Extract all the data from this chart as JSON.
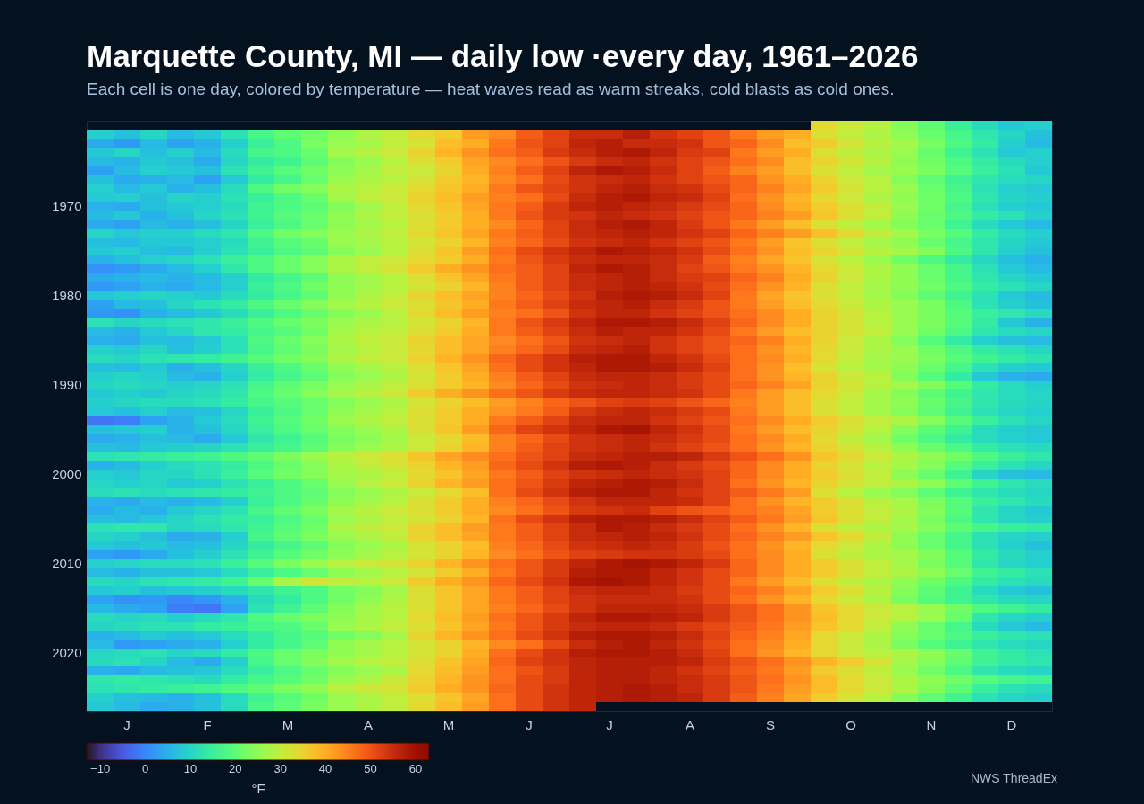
{
  "chart_data": {
    "type": "heatmap",
    "title": "Marquette County, MI — daily low ·every day, 1961–2026",
    "subtitle": "Each cell is one day, colored by temperature — heat waves read as warm streaks, cold blasts as cold ones.",
    "clabel": "°F",
    "annotations": [
      "NWS ThreadEx"
    ],
    "categories": [
      null,
      "J",
      null,
      null,
      "F",
      null,
      null,
      "M",
      null,
      null,
      "A",
      null,
      null,
      "M",
      null,
      null,
      "J",
      null,
      null,
      "J",
      null,
      null,
      "A",
      null,
      null,
      "S",
      null,
      null,
      "O",
      null,
      null,
      "N",
      null,
      null,
      "D",
      null
    ],
    "y_categories": [
      null,
      null,
      null,
      null,
      null,
      null,
      null,
      null,
      null,
      "1970",
      null,
      null,
      null,
      null,
      null,
      null,
      null,
      null,
      null,
      "1980",
      null,
      null,
      null,
      null,
      null,
      null,
      null,
      null,
      null,
      "1990",
      null,
      null,
      null,
      null,
      null,
      null,
      null,
      null,
      null,
      "2000",
      null,
      null,
      null,
      null,
      null,
      null,
      null,
      null,
      null,
      "2010",
      null,
      null,
      null,
      null,
      null,
      null,
      null,
      null,
      null,
      "2020",
      null,
      null,
      null,
      null,
      null,
      null
    ],
    "clim": [
      -13,
      63
    ],
    "cticks": [
      {
        "value": -10,
        "label": "−10"
      },
      0,
      10,
      20,
      30,
      40,
      50,
      60
    ],
    "cells": [
      [
        null,
        null,
        null,
        null,
        null,
        null,
        null,
        null,
        null,
        null,
        null,
        null,
        null,
        null,
        null,
        null,
        null,
        null,
        null,
        null,
        null,
        null,
        null,
        null,
        null,
        null,
        null,
        34,
        31,
        29,
        24,
        20,
        15,
        11,
        8,
        9
      ],
      [
        9,
        7,
        10,
        6,
        8,
        12,
        17,
        20,
        22,
        25,
        28,
        30,
        34,
        36,
        42,
        44,
        49,
        52,
        55,
        55,
        57,
        54,
        52,
        50,
        46,
        42,
        40,
        33,
        30,
        28,
        25,
        21,
        17,
        13,
        10,
        7
      ],
      [
        4,
        2,
        6,
        3,
        5,
        9,
        15,
        18,
        23,
        26,
        27,
        30,
        32,
        38,
        40,
        46,
        50,
        52,
        56,
        57,
        55,
        55,
        54,
        50,
        48,
        44,
        38,
        36,
        32,
        29,
        27,
        23,
        18,
        14,
        9,
        6
      ],
      [
        8,
        10,
        7,
        9,
        6,
        11,
        17,
        18,
        21,
        27,
        29,
        31,
        35,
        39,
        43,
        47,
        49,
        53,
        55,
        57,
        58,
        56,
        53,
        52,
        46,
        42,
        40,
        33,
        30,
        28,
        26,
        21,
        16,
        12,
        8,
        9
      ],
      [
        6,
        5,
        8,
        7,
        4,
        10,
        14,
        16,
        20,
        24,
        26,
        29,
        33,
        36,
        41,
        44,
        47,
        50,
        53,
        55,
        56,
        54,
        52,
        50,
        47,
        44,
        38,
        35,
        32,
        29,
        25,
        22,
        18,
        14,
        11,
        9
      ],
      [
        3,
        6,
        9,
        8,
        7,
        12,
        16,
        19,
        22,
        25,
        27,
        30,
        31,
        35,
        40,
        45,
        49,
        52,
        56,
        58,
        57,
        55,
        52,
        49,
        45,
        42,
        38,
        33,
        30,
        27,
        26,
        23,
        19,
        15,
        12,
        8
      ],
      [
        7,
        4,
        5,
        6,
        3,
        8,
        14,
        17,
        21,
        26,
        28,
        29,
        32,
        36,
        39,
        44,
        47,
        51,
        54,
        55,
        56,
        54,
        52,
        50,
        48,
        43,
        40,
        35,
        31,
        29,
        24,
        20,
        16,
        13,
        11,
        10
      ],
      [
        9,
        6,
        8,
        5,
        7,
        11,
        18,
        22,
        24,
        28,
        29,
        31,
        34,
        37,
        40,
        46,
        50,
        52,
        54,
        56,
        57,
        55,
        54,
        51,
        48,
        45,
        41,
        36,
        32,
        29,
        26,
        21,
        17,
        12,
        9,
        8
      ],
      [
        8,
        9,
        7,
        10,
        9,
        12,
        15,
        18,
        21,
        27,
        30,
        31,
        35,
        38,
        42,
        45,
        47,
        51,
        55,
        57,
        58,
        56,
        55,
        52,
        47,
        43,
        39,
        34,
        31,
        28,
        25,
        22,
        18,
        13,
        10,
        9
      ],
      [
        5,
        4,
        7,
        8,
        9,
        11,
        16,
        18,
        20,
        24,
        27,
        30,
        34,
        37,
        41,
        46,
        49,
        53,
        56,
        57,
        56,
        55,
        53,
        51,
        48,
        44,
        40,
        36,
        33,
        30,
        26,
        22,
        17,
        12,
        9,
        8
      ],
      [
        6,
        8,
        5,
        7,
        10,
        12,
        16,
        19,
        21,
        25,
        28,
        30,
        33,
        36,
        40,
        46,
        50,
        53,
        54,
        56,
        55,
        54,
        52,
        50,
        48,
        45,
        42,
        37,
        33,
        30,
        25,
        21,
        18,
        14,
        12,
        9
      ],
      [
        4,
        3,
        6,
        5,
        7,
        10,
        15,
        18,
        21,
        25,
        27,
        29,
        33,
        36,
        40,
        44,
        48,
        52,
        55,
        57,
        58,
        56,
        53,
        50,
        46,
        42,
        38,
        33,
        30,
        27,
        24,
        21,
        16,
        11,
        8,
        6
      ],
      [
        10,
        8,
        9,
        9,
        11,
        13,
        18,
        22,
        24,
        26,
        28,
        30,
        34,
        37,
        41,
        46,
        49,
        52,
        55,
        56,
        57,
        56,
        54,
        52,
        48,
        45,
        42,
        38,
        34,
        30,
        27,
        23,
        19,
        14,
        11,
        9
      ],
      [
        7,
        6,
        8,
        8,
        9,
        11,
        16,
        19,
        21,
        26,
        27,
        29,
        32,
        35,
        39,
        45,
        48,
        51,
        54,
        55,
        56,
        54,
        52,
        50,
        46,
        42,
        37,
        33,
        30,
        27,
        25,
        21,
        17,
        13,
        10,
        8
      ],
      [
        8,
        9,
        7,
        6,
        9,
        12,
        15,
        18,
        20,
        24,
        26,
        29,
        33,
        37,
        42,
        47,
        51,
        54,
        56,
        58,
        57,
        56,
        54,
        51,
        47,
        43,
        38,
        35,
        32,
        29,
        27,
        24,
        18,
        13,
        9,
        7
      ],
      [
        5,
        7,
        9,
        10,
        12,
        15,
        18,
        21,
        24,
        28,
        30,
        31,
        34,
        36,
        40,
        46,
        50,
        53,
        55,
        56,
        56,
        55,
        53,
        49,
        45,
        41,
        37,
        32,
        29,
        26,
        22,
        18,
        14,
        10,
        7,
        5
      ],
      [
        1,
        2,
        4,
        6,
        9,
        13,
        18,
        21,
        24,
        28,
        30,
        32,
        36,
        40,
        43,
        47,
        49,
        52,
        56,
        58,
        57,
        55,
        52,
        50,
        46,
        43,
        39,
        34,
        31,
        28,
        25,
        21,
        17,
        12,
        8,
        6
      ],
      [
        4,
        5,
        6,
        5,
        6,
        9,
        14,
        17,
        20,
        25,
        27,
        29,
        33,
        37,
        41,
        46,
        49,
        52,
        55,
        56,
        57,
        55,
        53,
        52,
        48,
        45,
        40,
        35,
        31,
        28,
        25,
        21,
        17,
        13,
        10,
        8
      ],
      [
        2,
        3,
        5,
        4,
        6,
        9,
        15,
        18,
        22,
        25,
        27,
        29,
        32,
        35,
        39,
        45,
        49,
        52,
        55,
        56,
        57,
        56,
        54,
        51,
        47,
        43,
        39,
        33,
        30,
        27,
        25,
        22,
        18,
        14,
        12,
        10
      ],
      [
        8,
        9,
        10,
        9,
        8,
        11,
        14,
        17,
        20,
        25,
        28,
        30,
        35,
        38,
        41,
        45,
        48,
        51,
        54,
        57,
        58,
        57,
        55,
        52,
        46,
        41,
        37,
        33,
        30,
        27,
        24,
        20,
        16,
        12,
        8,
        6
      ],
      [
        3,
        6,
        7,
        10,
        12,
        14,
        18,
        21,
        24,
        27,
        29,
        31,
        33,
        37,
        40,
        46,
        49,
        52,
        55,
        56,
        57,
        55,
        53,
        50,
        46,
        42,
        38,
        34,
        31,
        28,
        26,
        23,
        18,
        12,
        9,
        7
      ],
      [
        2,
        1,
        5,
        6,
        8,
        11,
        15,
        18,
        21,
        24,
        26,
        29,
        34,
        38,
        42,
        45,
        47,
        50,
        54,
        56,
        56,
        54,
        52,
        50,
        47,
        44,
        40,
        35,
        32,
        29,
        26,
        23,
        19,
        15,
        13,
        11
      ],
      [
        12,
        10,
        11,
        12,
        13,
        15,
        18,
        21,
        23,
        26,
        28,
        29,
        32,
        35,
        39,
        46,
        50,
        53,
        56,
        58,
        58,
        57,
        55,
        52,
        48,
        44,
        40,
        35,
        32,
        29,
        26,
        23,
        19,
        14,
        8,
        5
      ],
      [
        6,
        5,
        8,
        10,
        13,
        14,
        17,
        19,
        22,
        27,
        29,
        30,
        33,
        36,
        40,
        46,
        49,
        52,
        55,
        57,
        56,
        56,
        54,
        51,
        46,
        42,
        38,
        35,
        32,
        30,
        26,
        22,
        18,
        13,
        11,
        10
      ],
      [
        5,
        4,
        7,
        6,
        8,
        12,
        18,
        21,
        24,
        28,
        30,
        31,
        35,
        38,
        41,
        44,
        47,
        50,
        54,
        55,
        56,
        54,
        52,
        50,
        48,
        45,
        40,
        35,
        31,
        28,
        24,
        19,
        14,
        9,
        7,
        6
      ],
      [
        9,
        8,
        10,
        7,
        9,
        12,
        17,
        20,
        23,
        27,
        29,
        31,
        34,
        38,
        41,
        45,
        48,
        51,
        55,
        56,
        57,
        54,
        52,
        50,
        47,
        43,
        39,
        34,
        31,
        28,
        26,
        22,
        18,
        14,
        12,
        10
      ],
      [
        11,
        10,
        12,
        13,
        14,
        16,
        19,
        22,
        24,
        28,
        30,
        31,
        35,
        39,
        43,
        48,
        51,
        54,
        57,
        58,
        58,
        56,
        54,
        51,
        47,
        44,
        40,
        34,
        30,
        27,
        26,
        23,
        19,
        16,
        14,
        12
      ],
      [
        7,
        6,
        8,
        5,
        7,
        10,
        15,
        18,
        21,
        25,
        27,
        29,
        33,
        37,
        41,
        47,
        51,
        54,
        56,
        58,
        58,
        57,
        55,
        52,
        47,
        43,
        38,
        32,
        29,
        27,
        25,
        21,
        17,
        12,
        9,
        8
      ],
      [
        9,
        10,
        9,
        6,
        5,
        9,
        14,
        17,
        20,
        24,
        26,
        28,
        32,
        36,
        40,
        45,
        49,
        52,
        55,
        56,
        56,
        55,
        53,
        51,
        47,
        43,
        39,
        35,
        31,
        29,
        24,
        19,
        14,
        8,
        5,
        4
      ],
      [
        10,
        11,
        10,
        9,
        10,
        12,
        17,
        20,
        23,
        26,
        28,
        30,
        33,
        36,
        39,
        44,
        48,
        51,
        54,
        55,
        56,
        55,
        53,
        51,
        48,
        45,
        41,
        35,
        32,
        29,
        27,
        24,
        19,
        14,
        11,
        9
      ],
      [
        8,
        9,
        8,
        10,
        11,
        13,
        18,
        21,
        24,
        27,
        29,
        31,
        36,
        40,
        43,
        47,
        50,
        53,
        55,
        56,
        56,
        55,
        54,
        51,
        46,
        42,
        38,
        34,
        31,
        27,
        24,
        20,
        16,
        13,
        11,
        10
      ],
      [
        9,
        10,
        11,
        11,
        12,
        14,
        17,
        19,
        21,
        24,
        26,
        28,
        32,
        35,
        38,
        42,
        45,
        48,
        50,
        52,
        53,
        52,
        50,
        48,
        45,
        42,
        38,
        33,
        30,
        27,
        25,
        21,
        17,
        13,
        11,
        10
      ],
      [
        8,
        7,
        9,
        6,
        7,
        10,
        15,
        18,
        21,
        25,
        27,
        29,
        33,
        36,
        40,
        43,
        46,
        49,
        53,
        55,
        56,
        55,
        53,
        51,
        46,
        42,
        38,
        33,
        30,
        27,
        24,
        20,
        16,
        12,
        10,
        9
      ],
      [
        -2,
        -1,
        3,
        5,
        8,
        11,
        16,
        19,
        22,
        26,
        28,
        30,
        33,
        36,
        40,
        46,
        49,
        52,
        55,
        56,
        56,
        54,
        52,
        50,
        47,
        44,
        40,
        36,
        33,
        30,
        28,
        24,
        19,
        15,
        12,
        10
      ],
      [
        7,
        8,
        9,
        5,
        7,
        10,
        15,
        18,
        21,
        24,
        26,
        28,
        33,
        37,
        42,
        48,
        52,
        54,
        56,
        58,
        59,
        56,
        54,
        51,
        46,
        42,
        38,
        35,
        32,
        29,
        24,
        20,
        16,
        11,
        9,
        8
      ],
      [
        4,
        5,
        7,
        6,
        4,
        8,
        13,
        16,
        19,
        23,
        25,
        27,
        31,
        34,
        38,
        45,
        48,
        51,
        54,
        55,
        56,
        55,
        53,
        51,
        47,
        44,
        40,
        34,
        30,
        27,
        22,
        18,
        14,
        11,
        9,
        8
      ],
      [
        7,
        6,
        8,
        9,
        10,
        12,
        15,
        17,
        20,
        24,
        26,
        28,
        31,
        35,
        39,
        45,
        49,
        52,
        54,
        55,
        56,
        54,
        52,
        50,
        47,
        43,
        39,
        35,
        32,
        29,
        25,
        21,
        18,
        14,
        12,
        11
      ],
      [
        12,
        13,
        14,
        15,
        16,
        18,
        20,
        23,
        26,
        29,
        31,
        33,
        37,
        41,
        44,
        47,
        50,
        52,
        55,
        56,
        57,
        57,
        56,
        53,
        50,
        47,
        43,
        37,
        34,
        31,
        28,
        25,
        22,
        18,
        15,
        13
      ],
      [
        5,
        6,
        9,
        11,
        12,
        14,
        18,
        21,
        24,
        28,
        30,
        32,
        35,
        39,
        42,
        48,
        51,
        54,
        57,
        58,
        57,
        55,
        53,
        51,
        48,
        44,
        40,
        35,
        32,
        29,
        27,
        24,
        19,
        15,
        12,
        10
      ],
      [
        9,
        8,
        10,
        10,
        12,
        15,
        19,
        22,
        24,
        27,
        28,
        30,
        34,
        37,
        41,
        46,
        49,
        52,
        54,
        55,
        56,
        55,
        54,
        52,
        48,
        44,
        40,
        36,
        33,
        30,
        25,
        21,
        16,
        10,
        7,
        6
      ],
      [
        10,
        9,
        10,
        8,
        9,
        12,
        15,
        18,
        21,
        26,
        29,
        31,
        35,
        39,
        42,
        47,
        50,
        53,
        56,
        57,
        58,
        57,
        55,
        52,
        47,
        43,
        39,
        35,
        32,
        30,
        28,
        25,
        20,
        16,
        13,
        11
      ],
      [
        11,
        12,
        11,
        12,
        13,
        14,
        16,
        18,
        20,
        24,
        26,
        28,
        31,
        34,
        38,
        47,
        51,
        54,
        57,
        58,
        58,
        56,
        54,
        52,
        49,
        46,
        42,
        33,
        29,
        26,
        24,
        20,
        16,
        13,
        11,
        10
      ],
      [
        5,
        4,
        6,
        5,
        6,
        9,
        15,
        18,
        21,
        25,
        27,
        29,
        33,
        36,
        40,
        45,
        48,
        51,
        54,
        56,
        56,
        56,
        55,
        52,
        47,
        43,
        39,
        36,
        33,
        29,
        27,
        23,
        19,
        15,
        13,
        11
      ],
      [
        4,
        6,
        5,
        8,
        10,
        12,
        17,
        20,
        23,
        27,
        29,
        31,
        33,
        36,
        40,
        44,
        47,
        50,
        53,
        54,
        55,
        52,
        50,
        49,
        47,
        45,
        41,
        36,
        33,
        30,
        28,
        24,
        19,
        13,
        10,
        8
      ],
      [
        7,
        6,
        8,
        10,
        12,
        14,
        15,
        18,
        21,
        26,
        28,
        30,
        32,
        35,
        39,
        47,
        51,
        54,
        57,
        58,
        58,
        57,
        55,
        52,
        49,
        46,
        42,
        37,
        33,
        30,
        27,
        23,
        18,
        13,
        10,
        9
      ],
      [
        12,
        13,
        13,
        10,
        11,
        13,
        16,
        19,
        22,
        28,
        30,
        31,
        35,
        38,
        42,
        46,
        49,
        52,
        55,
        58,
        57,
        55,
        53,
        51,
        47,
        43,
        39,
        33,
        30,
        28,
        27,
        24,
        20,
        17,
        15,
        14
      ],
      [
        10,
        9,
        7,
        4,
        5,
        9,
        17,
        20,
        23,
        26,
        28,
        30,
        35,
        38,
        41,
        46,
        49,
        52,
        55,
        56,
        57,
        56,
        54,
        51,
        48,
        45,
        42,
        37,
        34,
        30,
        25,
        21,
        17,
        12,
        10,
        9
      ],
      [
        8,
        7,
        8,
        6,
        7,
        10,
        14,
        17,
        20,
        24,
        26,
        28,
        32,
        35,
        38,
        45,
        48,
        51,
        54,
        55,
        56,
        55,
        53,
        50,
        47,
        43,
        39,
        34,
        31,
        28,
        25,
        21,
        17,
        12,
        9,
        7
      ],
      [
        3,
        2,
        4,
        7,
        9,
        12,
        16,
        19,
        22,
        25,
        27,
        29,
        32,
        35,
        39,
        44,
        47,
        50,
        52,
        53,
        54,
        54,
        53,
        51,
        47,
        44,
        40,
        33,
        30,
        28,
        27,
        24,
        19,
        14,
        11,
        9
      ],
      [
        9,
        10,
        11,
        11,
        12,
        15,
        19,
        23,
        26,
        29,
        31,
        32,
        35,
        39,
        43,
        47,
        50,
        53,
        56,
        58,
        59,
        58,
        56,
        53,
        48,
        44,
        40,
        36,
        33,
        30,
        27,
        23,
        19,
        13,
        10,
        9
      ],
      [
        6,
        5,
        7,
        7,
        8,
        11,
        15,
        18,
        21,
        25,
        27,
        29,
        32,
        36,
        40,
        46,
        50,
        53,
        57,
        58,
        58,
        56,
        54,
        51,
        48,
        44,
        40,
        36,
        33,
        30,
        28,
        25,
        21,
        16,
        14,
        12
      ],
      [
        11,
        10,
        12,
        13,
        14,
        16,
        21,
        28,
        32,
        30,
        29,
        31,
        36,
        40,
        43,
        48,
        51,
        54,
        58,
        59,
        58,
        56,
        54,
        51,
        46,
        42,
        38,
        33,
        30,
        28,
        25,
        22,
        18,
        14,
        12,
        11
      ],
      [
        8,
        9,
        7,
        8,
        9,
        11,
        13,
        16,
        18,
        22,
        24,
        27,
        33,
        37,
        41,
        46,
        49,
        52,
        55,
        56,
        56,
        55,
        53,
        51,
        48,
        45,
        41,
        36,
        33,
        29,
        24,
        20,
        16,
        11,
        8,
        7
      ],
      [
        3,
        1,
        2,
        0,
        2,
        5,
        11,
        14,
        18,
        22,
        25,
        28,
        33,
        37,
        41,
        46,
        49,
        52,
        54,
        55,
        55,
        55,
        54,
        51,
        47,
        43,
        39,
        34,
        31,
        28,
        23,
        19,
        16,
        13,
        11,
        10
      ],
      [
        6,
        4,
        3,
        -1,
        -2,
        3,
        12,
        16,
        20,
        24,
        27,
        29,
        33,
        37,
        41,
        45,
        48,
        51,
        54,
        56,
        56,
        56,
        55,
        53,
        50,
        47,
        43,
        37,
        34,
        31,
        29,
        26,
        22,
        18,
        16,
        14
      ],
      [
        11,
        10,
        11,
        9,
        11,
        13,
        18,
        21,
        23,
        25,
        27,
        29,
        34,
        38,
        42,
        47,
        50,
        53,
        56,
        58,
        58,
        57,
        56,
        53,
        50,
        47,
        43,
        38,
        34,
        31,
        29,
        26,
        21,
        13,
        10,
        9
      ],
      [
        10,
        11,
        12,
        12,
        14,
        15,
        17,
        18,
        21,
        26,
        28,
        30,
        33,
        37,
        41,
        46,
        50,
        53,
        55,
        56,
        56,
        55,
        53,
        51,
        49,
        46,
        42,
        37,
        34,
        30,
        25,
        21,
        17,
        11,
        8,
        6
      ],
      [
        5,
        6,
        8,
        7,
        8,
        11,
        14,
        17,
        19,
        22,
        24,
        27,
        35,
        39,
        43,
        47,
        51,
        54,
        57,
        58,
        58,
        57,
        55,
        52,
        48,
        45,
        41,
        34,
        31,
        28,
        24,
        21,
        18,
        15,
        13,
        12
      ],
      [
        6,
        2,
        3,
        4,
        5,
        9,
        14,
        17,
        20,
        25,
        27,
        29,
        32,
        35,
        39,
        44,
        47,
        51,
        55,
        57,
        58,
        56,
        54,
        51,
        47,
        44,
        40,
        34,
        31,
        28,
        23,
        19,
        16,
        13,
        11,
        10
      ],
      [
        10,
        11,
        12,
        10,
        11,
        14,
        18,
        21,
        23,
        25,
        27,
        29,
        32,
        35,
        40,
        47,
        51,
        54,
        57,
        58,
        58,
        57,
        55,
        52,
        47,
        43,
        39,
        34,
        31,
        29,
        28,
        25,
        21,
        16,
        14,
        12
      ],
      [
        11,
        12,
        10,
        6,
        4,
        9,
        17,
        21,
        24,
        27,
        29,
        30,
        33,
        37,
        41,
        48,
        52,
        54,
        56,
        57,
        57,
        57,
        56,
        53,
        50,
        47,
        43,
        39,
        36,
        32,
        27,
        24,
        20,
        16,
        14,
        13
      ],
      [
        5,
        4,
        6,
        7,
        8,
        11,
        15,
        18,
        21,
        24,
        26,
        28,
        34,
        38,
        42,
        47,
        50,
        53,
        56,
        57,
        57,
        56,
        54,
        52,
        49,
        46,
        42,
        36,
        33,
        30,
        26,
        22,
        18,
        13,
        11,
        10
      ],
      [
        13,
        14,
        13,
        12,
        11,
        14,
        17,
        19,
        22,
        26,
        28,
        31,
        35,
        39,
        43,
        47,
        51,
        53,
        56,
        57,
        57,
        56,
        55,
        53,
        50,
        47,
        43,
        38,
        34,
        31,
        28,
        25,
        22,
        19,
        17,
        16
      ],
      [
        12,
        13,
        14,
        15,
        16,
        18,
        20,
        23,
        25,
        29,
        31,
        32,
        36,
        40,
        43,
        48,
        51,
        54,
        56,
        57,
        58,
        57,
        55,
        53,
        50,
        46,
        42,
        38,
        34,
        31,
        28,
        24,
        20,
        15,
        12,
        11
      ],
      [
        9,
        7,
        6,
        5,
        7,
        11,
        16,
        19,
        22,
        26,
        28,
        30,
        33,
        37,
        41,
        47,
        51,
        54,
        56,
        57,
        58,
        57,
        56,
        53,
        49,
        45,
        41,
        36,
        32,
        29,
        24,
        20,
        16,
        12,
        10,
        9
      ],
      [
        8,
        6,
        4,
        5,
        7,
        11,
        17,
        20,
        23,
        26,
        28,
        30,
        34,
        38,
        42,
        47,
        51,
        54,
        56,
        null,
        null,
        null,
        null,
        null,
        null,
        null,
        null,
        null,
        null,
        null,
        null,
        null,
        null,
        null,
        null,
        null
      ]
    ]
  }
}
